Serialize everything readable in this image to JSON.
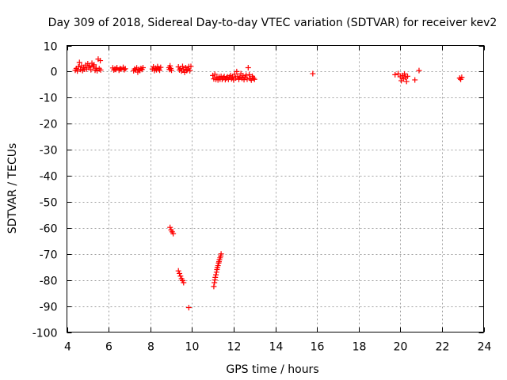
{
  "chart_data": {
    "type": "scatter",
    "title": "Day 309 of 2018, Sidereal Day-to-day VTEC variation (SDTVAR) for receiver kev2",
    "xlabel": "GPS time / hours",
    "ylabel": "SDTVAR / TECUs",
    "xlim": [
      4,
      24
    ],
    "ylim": [
      -100,
      10
    ],
    "xticks": [
      4,
      6,
      8,
      10,
      12,
      14,
      16,
      18,
      20,
      22,
      24
    ],
    "yticks": [
      10,
      0,
      -10,
      -20,
      -30,
      -40,
      -50,
      -60,
      -70,
      -80,
      -90,
      -100
    ],
    "grid": true,
    "marker": "+",
    "color": "#ff0000",
    "series": [
      {
        "name": "SDTVAR",
        "points": [
          [
            4.4,
            0.5
          ],
          [
            4.45,
            1.2
          ],
          [
            4.5,
            0.2
          ],
          [
            4.55,
            1.8
          ],
          [
            4.6,
            3.5
          ],
          [
            4.65,
            0.8
          ],
          [
            4.7,
            2.2
          ],
          [
            4.75,
            0.4
          ],
          [
            4.8,
            1.5
          ],
          [
            4.85,
            0.9
          ],
          [
            4.9,
            2.5
          ],
          [
            4.95,
            1.0
          ],
          [
            5.0,
            3.0
          ],
          [
            5.05,
            1.6
          ],
          [
            5.1,
            2.2
          ],
          [
            5.15,
            0.7
          ],
          [
            5.2,
            3.2
          ],
          [
            5.25,
            1.9
          ],
          [
            5.3,
            2.6
          ],
          [
            5.35,
            0.5
          ],
          [
            5.4,
            1.3
          ],
          [
            5.45,
            0.3
          ],
          [
            5.5,
            4.8
          ],
          [
            5.55,
            1.1
          ],
          [
            5.6,
            4.2
          ],
          [
            5.62,
            0.6
          ],
          [
            6.2,
            1.4
          ],
          [
            6.25,
            0.6
          ],
          [
            6.3,
            1.0
          ],
          [
            6.35,
            0.8
          ],
          [
            6.4,
            1.5
          ],
          [
            6.5,
            0.5
          ],
          [
            6.55,
            1.2
          ],
          [
            6.6,
            0.9
          ],
          [
            6.7,
            1.6
          ],
          [
            6.75,
            0.7
          ],
          [
            6.8,
            1.1
          ],
          [
            7.2,
            0.3
          ],
          [
            7.25,
            1.0
          ],
          [
            7.3,
            0.6
          ],
          [
            7.35,
            1.4
          ],
          [
            7.4,
            -0.2
          ],
          [
            7.45,
            0.9
          ],
          [
            7.5,
            0.4
          ],
          [
            7.55,
            1.2
          ],
          [
            7.6,
            0.8
          ],
          [
            7.65,
            1.5
          ],
          [
            8.1,
            1.0
          ],
          [
            8.15,
            1.8
          ],
          [
            8.2,
            0.4
          ],
          [
            8.25,
            1.3
          ],
          [
            8.3,
            0.7
          ],
          [
            8.35,
            1.9
          ],
          [
            8.4,
            1.1
          ],
          [
            8.45,
            0.5
          ],
          [
            8.5,
            1.6
          ],
          [
            8.9,
            1.5
          ],
          [
            8.92,
            0.8
          ],
          [
            8.95,
            2.2
          ],
          [
            8.98,
            1.2
          ],
          [
            9.02,
            0.5
          ],
          [
            9.35,
            1.8
          ],
          [
            9.4,
            0.6
          ],
          [
            9.45,
            1.2
          ],
          [
            9.5,
            0.2
          ],
          [
            9.55,
            2.0
          ],
          [
            9.6,
            0.9
          ],
          [
            9.65,
            -0.3
          ],
          [
            9.7,
            1.5
          ],
          [
            9.75,
            0.4
          ],
          [
            9.8,
            0.8
          ],
          [
            9.85,
            1.9
          ],
          [
            9.9,
            0.3
          ],
          [
            9.95,
            2.0
          ],
          [
            8.95,
            -59.8
          ],
          [
            9.0,
            -60.8
          ],
          [
            9.05,
            -61.5
          ],
          [
            9.1,
            -62.2
          ],
          [
            9.35,
            -76.5
          ],
          [
            9.4,
            -77.5
          ],
          [
            9.45,
            -78.5
          ],
          [
            9.5,
            -79.5
          ],
          [
            9.55,
            -80.2
          ],
          [
            9.6,
            -81.0
          ],
          [
            9.85,
            -90.6
          ],
          [
            11.05,
            -82.5
          ],
          [
            11.08,
            -81.0
          ],
          [
            11.1,
            -80.0
          ],
          [
            11.12,
            -79.0
          ],
          [
            11.15,
            -78.0
          ],
          [
            11.18,
            -77.0
          ],
          [
            11.2,
            -76.0
          ],
          [
            11.22,
            -75.2
          ],
          [
            11.25,
            -74.5
          ],
          [
            11.28,
            -73.5
          ],
          [
            11.3,
            -73.0
          ],
          [
            11.32,
            -72.2
          ],
          [
            11.35,
            -71.5
          ],
          [
            11.38,
            -70.8
          ],
          [
            11.4,
            -70.0
          ],
          [
            11.0,
            -1.5
          ],
          [
            11.05,
            -2.8
          ],
          [
            11.1,
            -1.0
          ],
          [
            11.15,
            -3.0
          ],
          [
            11.2,
            -2.2
          ],
          [
            11.25,
            -3.2
          ],
          [
            11.3,
            -2.0
          ],
          [
            11.35,
            -2.9
          ],
          [
            11.4,
            -1.8
          ],
          [
            11.45,
            -3.0
          ],
          [
            11.5,
            -2.4
          ],
          [
            11.55,
            -1.9
          ],
          [
            11.6,
            -3.1
          ],
          [
            11.65,
            -2.5
          ],
          [
            11.7,
            -2.0
          ],
          [
            11.75,
            -3.0
          ],
          [
            11.8,
            -2.2
          ],
          [
            11.85,
            -1.5
          ],
          [
            11.9,
            -2.8
          ],
          [
            11.95,
            -2.0
          ],
          [
            12.0,
            -3.2
          ],
          [
            12.05,
            -1.0
          ],
          [
            12.1,
            -2.5
          ],
          [
            12.15,
            0.0
          ],
          [
            12.2,
            -1.8
          ],
          [
            12.25,
            -3.0
          ],
          [
            12.3,
            -2.2
          ],
          [
            12.35,
            -0.8
          ],
          [
            12.4,
            -2.6
          ],
          [
            12.45,
            -1.6
          ],
          [
            12.5,
            -3.1
          ],
          [
            12.55,
            -2.1
          ],
          [
            12.6,
            -1.4
          ],
          [
            12.65,
            -2.9
          ],
          [
            12.7,
            1.5
          ],
          [
            12.75,
            -1.2
          ],
          [
            12.8,
            -2.6
          ],
          [
            12.85,
            -3.3
          ],
          [
            12.9,
            -1.8
          ],
          [
            12.95,
            -2.5
          ],
          [
            13.0,
            -3.0
          ],
          [
            15.8,
            -0.8
          ],
          [
            19.75,
            -1.2
          ],
          [
            19.9,
            -0.8
          ],
          [
            20.0,
            -2.0
          ],
          [
            20.05,
            -3.5
          ],
          [
            20.1,
            -1.5
          ],
          [
            20.15,
            -2.8
          ],
          [
            20.2,
            -0.9
          ],
          [
            20.25,
            -2.2
          ],
          [
            20.3,
            -3.8
          ],
          [
            20.35,
            -1.8
          ],
          [
            20.7,
            -3.2
          ],
          [
            20.9,
            0.4
          ],
          [
            22.85,
            -2.5
          ],
          [
            22.9,
            -3.0
          ],
          [
            22.95,
            -2.2
          ]
        ]
      }
    ]
  }
}
